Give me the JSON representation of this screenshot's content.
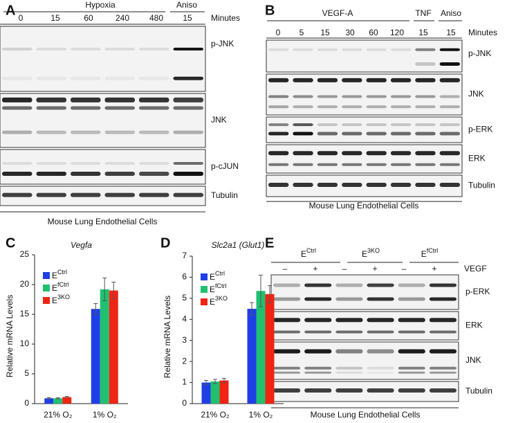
{
  "panels": {
    "A": {
      "letter": "A",
      "groups": [
        "Hypoxia",
        "Aniso"
      ],
      "minutes": "Minutes",
      "lanes": [
        "0",
        "15",
        "60",
        "240",
        "480",
        "15"
      ],
      "blots": [
        "p-JNK",
        "JNK",
        "p-cJUN",
        "Tubulin"
      ],
      "caption": "Mouse Lung Endothelial Cells"
    },
    "B": {
      "letter": "B",
      "groups": [
        "VEGF-A",
        "TNF",
        "Aniso"
      ],
      "minutes": "Minutes",
      "lanes": [
        "0",
        "5",
        "15",
        "30",
        "60",
        "120",
        "15",
        "15"
      ],
      "blots": [
        "p-JNK",
        "JNK",
        "p-ERK",
        "ERK",
        "Tubulin"
      ],
      "caption": "Mouse Lung Endothelial Cells"
    },
    "E": {
      "letter": "E",
      "groups": [
        "ECtrl",
        "E3KO",
        "EfCtrl"
      ],
      "treatment": "VEGF",
      "lanes": [
        "–",
        "+",
        "–",
        "+",
        "–",
        "+"
      ],
      "blots": [
        "p-ERK",
        "ERK",
        "JNK",
        "Tubulin"
      ],
      "caption": "Mouse Lung Endothelial Cells"
    }
  },
  "chart_data": [
    {
      "type": "bar",
      "panel_label": "C",
      "title": "Vegfa",
      "ylabel": "Relative mRNA Levels",
      "categories": [
        "21% O₂",
        "1% O₂"
      ],
      "series": [
        {
          "name": "ECtrl",
          "color": "#1f3fe6",
          "values": [
            0.9,
            15.9
          ],
          "errors": [
            0.1,
            0.9
          ]
        },
        {
          "name": "EfCtrl",
          "color": "#20c070",
          "values": [
            0.9,
            19.2
          ],
          "errors": [
            0.1,
            1.9
          ]
        },
        {
          "name": "E3KO",
          "color": "#f02414",
          "values": [
            1.1,
            19.0
          ],
          "errors": [
            0.1,
            1.4
          ]
        }
      ],
      "ylim": [
        0,
        25
      ],
      "yticks": [
        0,
        5,
        10,
        15,
        20,
        25
      ],
      "legend": "upper left"
    },
    {
      "type": "bar",
      "panel_label": "D",
      "title": "Slc2a1 (Glut1)",
      "ylabel": "Relative mRNA Levels",
      "categories": [
        "21% O₂",
        "1% O₂"
      ],
      "series": [
        {
          "name": "ECtrl",
          "color": "#1f3fe6",
          "values": [
            1.0,
            4.5
          ],
          "errors": [
            0.1,
            0.3
          ]
        },
        {
          "name": "EfCtrl",
          "color": "#20c070",
          "values": [
            1.05,
            5.35
          ],
          "errors": [
            0.1,
            0.75
          ]
        },
        {
          "name": "E3KO",
          "color": "#f02414",
          "values": [
            1.1,
            5.2
          ],
          "errors": [
            0.1,
            0.4
          ]
        }
      ],
      "ylim": [
        0,
        7
      ],
      "yticks": [
        0,
        1,
        2,
        3,
        4,
        5,
        6,
        7
      ],
      "legend": "upper left"
    }
  ]
}
